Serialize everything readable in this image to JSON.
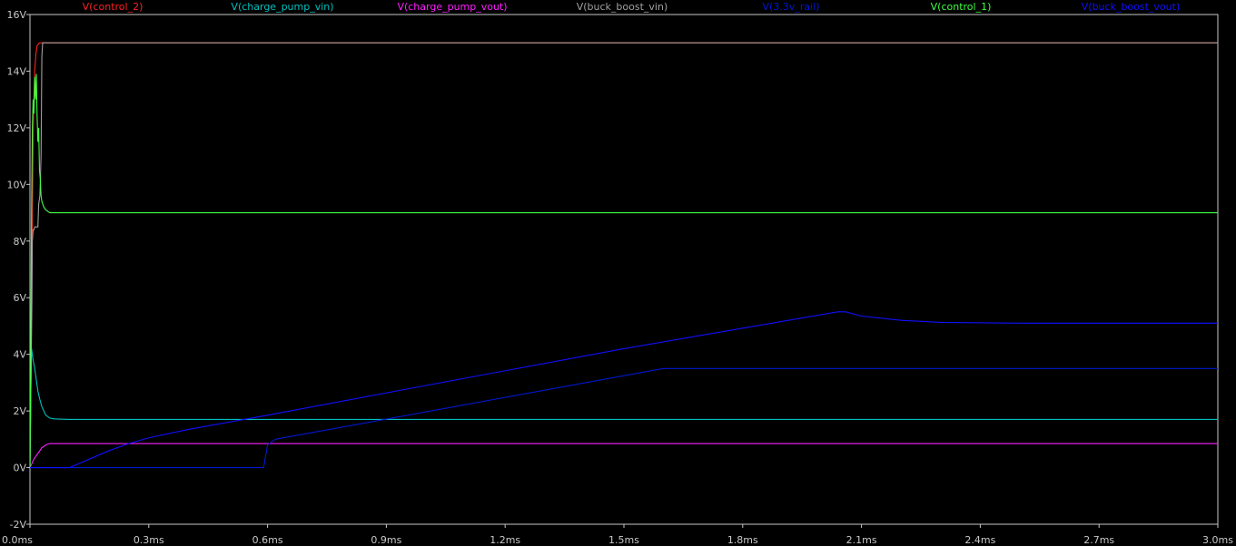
{
  "chart_data": {
    "type": "line",
    "background": "#000000",
    "axis_color": "#c8c8c8",
    "xlim": [
      0,
      3.0
    ],
    "ylim": [
      -2,
      16
    ],
    "x_unit": "ms",
    "y_unit": "V",
    "x_ticks": [
      0,
      0.3,
      0.6,
      0.9,
      1.2,
      1.5,
      1.8,
      2.1,
      2.4,
      2.7,
      3.0
    ],
    "x_tick_labels": [
      "0.0ms",
      "0.3ms",
      "0.6ms",
      "0.9ms",
      "1.2ms",
      "1.5ms",
      "1.8ms",
      "2.1ms",
      "2.4ms",
      "2.7ms",
      "3.0ms"
    ],
    "y_ticks": [
      -2,
      0,
      2,
      4,
      6,
      8,
      10,
      12,
      14,
      16
    ],
    "y_tick_labels": [
      "-2V",
      "0V",
      "2V",
      "4V",
      "6V",
      "8V",
      "10V",
      "12V",
      "14V",
      "16V"
    ],
    "grid": false,
    "legend_position": "top",
    "series": [
      {
        "name": "V(control_2)",
        "color": "#ff2020",
        "x": [
          0,
          0.003,
          0.006,
          0.009,
          0.012,
          0.015,
          0.018,
          0.024,
          0.03,
          3.0
        ],
        "y": [
          0,
          4,
          9,
          12.5,
          14,
          14.6,
          14.9,
          15,
          15,
          15
        ]
      },
      {
        "name": "V(charge_pump_vin)",
        "color": "#00c0c0",
        "x": [
          0,
          0.002,
          0.004,
          0.008,
          0.012,
          0.016,
          0.02,
          0.025,
          0.03,
          0.035,
          0.04,
          0.05,
          0.06,
          0.08,
          0.1,
          0.3,
          3.0
        ],
        "y": [
          0,
          2.5,
          4.2,
          3.8,
          3.5,
          3.1,
          2.7,
          2.4,
          2.15,
          2.0,
          1.85,
          1.75,
          1.72,
          1.71,
          1.7,
          1.7,
          1.7
        ]
      },
      {
        "name": "V(charge_pump_vout)",
        "color": "#ff20ff",
        "x": [
          0,
          0.01,
          0.02,
          0.03,
          0.04,
          0.05,
          3.0
        ],
        "y": [
          0,
          0.3,
          0.5,
          0.7,
          0.8,
          0.85,
          0.85
        ]
      },
      {
        "name": "V(buck_boost_vin)",
        "color": "#a0a0a0",
        "x": [
          0,
          0.005,
          0.006,
          0.008,
          0.01,
          0.012,
          0.014,
          0.02,
          0.022,
          0.025,
          0.028,
          0.03,
          0.032,
          0.035,
          3.0
        ],
        "y": [
          0,
          6,
          8,
          8.4,
          8.4,
          8.5,
          8.5,
          8.5,
          9.3,
          9.6,
          11,
          14.5,
          15,
          15,
          15
        ]
      },
      {
        "name": "V(3.3v_rail)",
        "color": "#0018d0",
        "x": [
          0,
          0.59,
          0.6,
          0.62,
          1.6,
          1.62,
          3.0
        ],
        "y": [
          0,
          0,
          0.8,
          1.0,
          3.5,
          3.5,
          3.5
        ]
      },
      {
        "name": "V(control_1)",
        "color": "#40ff40",
        "x": [
          0,
          0.002,
          0.004,
          0.006,
          0.008,
          0.01,
          0.012,
          0.014,
          0.016,
          0.018,
          0.02,
          0.022,
          0.024,
          0.026,
          0.028,
          0.03,
          0.035,
          0.04,
          0.05,
          0.07,
          0.1,
          3.0
        ],
        "y": [
          0,
          4,
          9,
          12,
          13,
          12.5,
          13.8,
          13,
          13.9,
          12.4,
          11.5,
          12,
          10.5,
          10.2,
          9.6,
          9.4,
          9.2,
          9.1,
          9.0,
          9.0,
          9.0,
          9.0
        ]
      },
      {
        "name": "V(buck_boost_vout)",
        "color": "#1010ff",
        "x": [
          0,
          0.1,
          0.15,
          0.2,
          0.25,
          0.3,
          0.4,
          0.6,
          1.0,
          1.5,
          2.04,
          2.06,
          2.1,
          2.2,
          2.3,
          2.5,
          3.0
        ],
        "y": [
          0,
          0,
          0.3,
          0.6,
          0.85,
          1.05,
          1.35,
          1.85,
          2.9,
          4.2,
          5.5,
          5.5,
          5.35,
          5.2,
          5.13,
          5.1,
          5.1
        ]
      }
    ]
  }
}
